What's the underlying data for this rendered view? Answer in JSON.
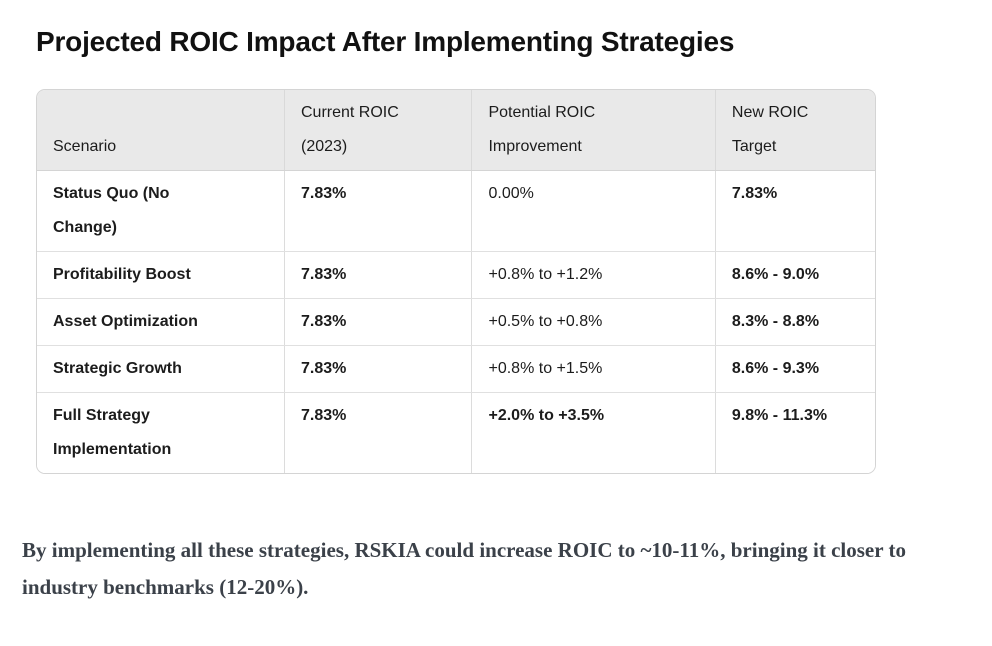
{
  "page": {
    "title": "Projected ROIC Impact After Implementing Strategies"
  },
  "table": {
    "headers": [
      "Scenario",
      "Current ROIC (2023)",
      "Potential ROIC Improvement",
      "New ROIC Target"
    ],
    "rows": [
      {
        "scenario": "Status Quo (No Change)",
        "current_roic": "7.83%",
        "improvement": "0.00%",
        "new_target": "7.83%",
        "improvement_emphasis": false,
        "tall": true
      },
      {
        "scenario": "Profitability Boost",
        "current_roic": "7.83%",
        "improvement": "+0.8% to +1.2%",
        "new_target": "8.6% - 9.0%",
        "improvement_emphasis": false,
        "tall": false
      },
      {
        "scenario": "Asset Optimization",
        "current_roic": "7.83%",
        "improvement": "+0.5% to +0.8%",
        "new_target": "8.3% - 8.8%",
        "improvement_emphasis": false,
        "tall": false
      },
      {
        "scenario": "Strategic Growth",
        "current_roic": "7.83%",
        "improvement": "+0.8% to +1.5%",
        "new_target": "8.6% - 9.3%",
        "improvement_emphasis": false,
        "tall": false
      },
      {
        "scenario": "Full Strategy Implementation",
        "current_roic": "7.83%",
        "improvement": "+2.0% to +3.5%",
        "new_target": "9.8% - 11.3%",
        "improvement_emphasis": true,
        "tall": true
      }
    ]
  },
  "summary_text": "By implementing all these strategies, RSKIA could increase ROIC to ~10-11%, bringing it closer to industry benchmarks (12-20%).",
  "colors": {
    "header_bg": "#e9e9e9",
    "table_border": "#d4d4d4",
    "body_text": "#1c1c1c",
    "summary_text": "#3b4149"
  }
}
